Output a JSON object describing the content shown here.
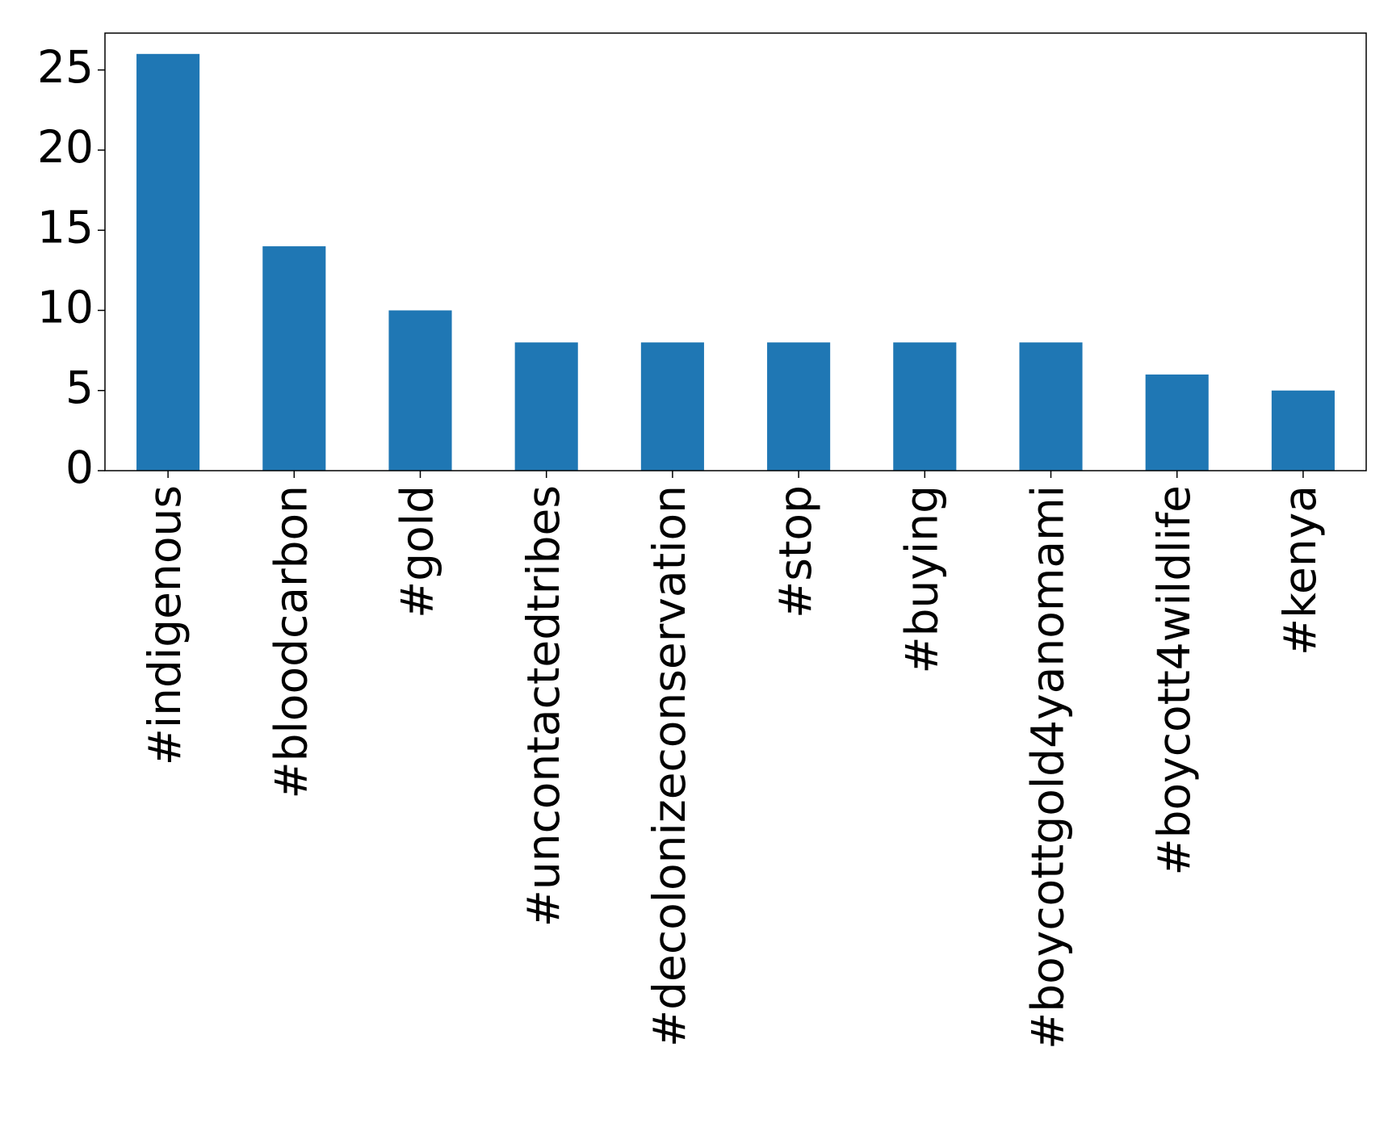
{
  "chart_data": {
    "type": "bar",
    "categories": [
      "#indigenous",
      "#bloodcarbon",
      "#gold",
      "#uncontactedtribes",
      "#decolonizeconservation",
      "#stop",
      "#buying",
      "#boycottgold4yanomami",
      "#boycott4wildlife",
      "#kenya"
    ],
    "values": [
      26,
      14,
      10,
      8,
      8,
      8,
      8,
      8,
      6,
      5
    ],
    "color": "#1f77b4",
    "ylim": [
      0,
      27.3
    ],
    "yticks": [
      0,
      5,
      10,
      15,
      20,
      25
    ],
    "grid": false
  }
}
